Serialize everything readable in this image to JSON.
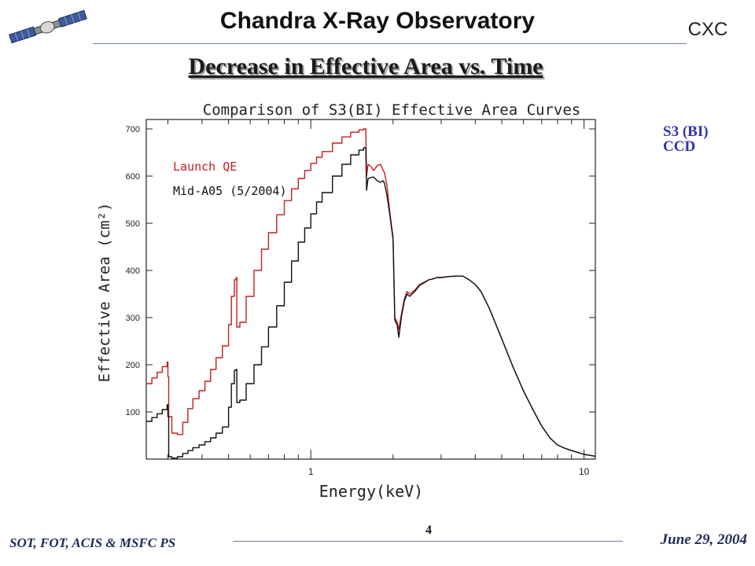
{
  "header": {
    "title": "Chandra X-Ray Observatory",
    "org": "CXC",
    "logo_icon": "satellite-icon"
  },
  "slide": {
    "title": "Decrease in Effective Area vs. Time"
  },
  "side_label": {
    "line1": "S3 (BI)",
    "line2": "CCD",
    "color": "#2e34b3"
  },
  "footer": {
    "left": "SOT, FOT, ACIS & MSFC PS",
    "page": "4",
    "date": "June 29, 2004"
  },
  "chart_data": {
    "type": "line",
    "title": "Comparison of S3(BI) Effective Area Curves",
    "xlabel": "Energy(keV)",
    "ylabel": "Effective Area (cm²)",
    "xscale": "log",
    "xlim": [
      0.25,
      11
    ],
    "ylim": [
      0,
      720
    ],
    "x_ticks": [
      {
        "value": 1,
        "label": "1"
      },
      {
        "value": 10,
        "label": "10"
      }
    ],
    "y_ticks": [
      {
        "value": 100,
        "label": "100"
      },
      {
        "value": 200,
        "label": "200"
      },
      {
        "value": 300,
        "label": "300"
      },
      {
        "value": 400,
        "label": "400"
      },
      {
        "value": 500,
        "label": "500"
      },
      {
        "value": 600,
        "label": "600"
      },
      {
        "value": 700,
        "label": "700"
      }
    ],
    "grid": false,
    "legend": "top-left",
    "series": [
      {
        "name": "Launch QE",
        "color": "#c41e1e",
        "x": [
          0.25,
          0.262,
          0.274,
          0.286,
          0.298,
          0.3,
          0.302,
          0.31,
          0.325,
          0.34,
          0.355,
          0.37,
          0.39,
          0.41,
          0.43,
          0.45,
          0.475,
          0.5,
          0.512,
          0.525,
          0.533,
          0.536,
          0.55,
          0.58,
          0.62,
          0.66,
          0.7,
          0.75,
          0.8,
          0.85,
          0.9,
          0.95,
          1.0,
          1.05,
          1.1,
          1.2,
          1.3,
          1.4,
          1.5,
          1.56,
          1.59,
          1.6,
          1.62,
          1.66,
          1.7,
          1.75,
          1.8,
          1.84,
          1.86,
          1.9,
          1.95,
          2.0,
          2.03,
          2.07,
          2.1,
          2.15,
          2.2,
          2.25,
          2.3,
          2.4,
          2.5,
          2.6,
          2.7,
          2.8,
          2.9,
          3.0,
          3.2,
          3.4,
          3.6,
          3.8,
          4.0,
          4.2,
          4.5,
          5.0,
          5.5,
          6.0,
          6.5,
          7.0,
          7.5,
          8.0,
          8.5,
          9.0,
          9.5,
          10.0,
          10.5,
          11.0
        ],
        "y": [
          160,
          172,
          184,
          196,
          206,
          175,
          90,
          55,
          52,
          78,
          107,
          128,
          145,
          165,
          190,
          215,
          240,
          285,
          345,
          380,
          385,
          280,
          290,
          345,
          400,
          445,
          480,
          518,
          548,
          573,
          595,
          612,
          627,
          640,
          652,
          670,
          683,
          693,
          698,
          700,
          690,
          600,
          625,
          620,
          612,
          622,
          625,
          612,
          608,
          580,
          520,
          470,
          300,
          290,
          275,
          310,
          340,
          355,
          350,
          358,
          370,
          375,
          380,
          382,
          385,
          385,
          387,
          388,
          388,
          380,
          370,
          355,
          320,
          255,
          195,
          145,
          105,
          70,
          45,
          30,
          23,
          18,
          14,
          10,
          8,
          6
        ]
      },
      {
        "name": "Mid-A05 (5/2004)",
        "color": "#111111",
        "x": [
          0.25,
          0.262,
          0.274,
          0.286,
          0.298,
          0.3,
          0.302,
          0.31,
          0.325,
          0.34,
          0.355,
          0.37,
          0.39,
          0.41,
          0.43,
          0.45,
          0.475,
          0.5,
          0.512,
          0.525,
          0.533,
          0.536,
          0.55,
          0.58,
          0.62,
          0.66,
          0.7,
          0.75,
          0.8,
          0.85,
          0.9,
          0.95,
          1.0,
          1.05,
          1.1,
          1.2,
          1.3,
          1.4,
          1.5,
          1.56,
          1.59,
          1.6,
          1.62,
          1.66,
          1.7,
          1.75,
          1.8,
          1.84,
          1.86,
          1.9,
          1.95,
          2.0,
          2.03,
          2.07,
          2.1,
          2.15,
          2.2,
          2.25,
          2.3,
          2.4,
          2.5,
          2.6,
          2.7,
          2.8,
          2.9,
          3.0,
          3.2,
          3.4,
          3.6,
          3.8,
          4.0,
          4.2,
          4.5,
          5.0,
          5.5,
          6.0,
          6.5,
          7.0,
          7.5,
          8.0,
          8.5,
          9.0,
          9.5,
          10.0,
          10.5,
          11.0
        ],
        "y": [
          80,
          88,
          96,
          105,
          115,
          90,
          5,
          2,
          5,
          12,
          18,
          24,
          30,
          37,
          45,
          55,
          68,
          110,
          160,
          188,
          190,
          120,
          125,
          160,
          200,
          238,
          280,
          325,
          375,
          420,
          460,
          490,
          520,
          545,
          565,
          600,
          625,
          645,
          655,
          660,
          650,
          570,
          595,
          597,
          598,
          590,
          587,
          590,
          585,
          560,
          515,
          465,
          295,
          285,
          258,
          305,
          335,
          350,
          345,
          355,
          368,
          374,
          380,
          382,
          385,
          385,
          387,
          388,
          388,
          380,
          370,
          355,
          320,
          255,
          195,
          145,
          105,
          70,
          45,
          30,
          23,
          18,
          14,
          10,
          8,
          6
        ]
      }
    ]
  }
}
